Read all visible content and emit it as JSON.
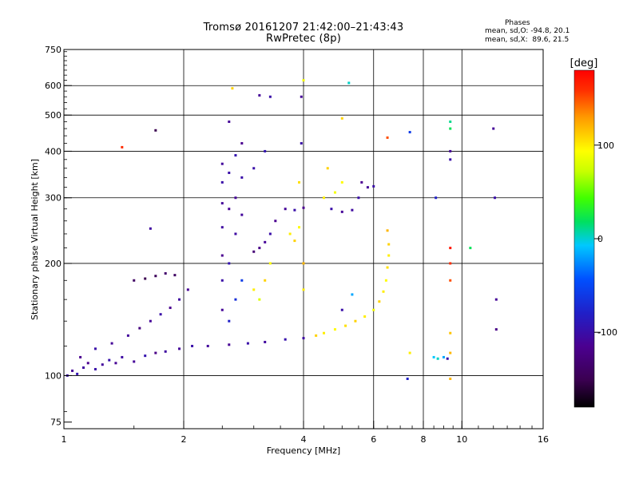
{
  "header": {
    "title": "Tromsø 20161207 21:42:00–21:43:43",
    "subtitle": "RwPretec (8p)"
  },
  "stats": {
    "heading": "Phases",
    "line_o": "mean, sd,O: -94.8, 20.1",
    "line_x": "mean, sd,X:  89.6, 21.5"
  },
  "colorbar": {
    "label": "[deg]",
    "ticks": [
      {
        "value": 100,
        "label": "100"
      },
      {
        "value": 0,
        "label": "0"
      },
      {
        "value": -100,
        "label": "-100"
      }
    ],
    "range": [
      -180,
      180
    ],
    "colormap": "rainbow (black → purple → blue → cyan → green → yellow → orange → red)"
  },
  "chart_data": {
    "type": "scatter",
    "xlabel": "Frequency [MHz]",
    "ylabel": "Stationary phase Virtual Height [km]",
    "x_scale": "log",
    "y_scale": "log",
    "xlim": [
      1,
      16
    ],
    "ylim": [
      72,
      750
    ],
    "x_ticks": [
      {
        "value": 1,
        "label": "1"
      },
      {
        "value": 2,
        "label": "2"
      },
      {
        "value": 4,
        "label": "4"
      },
      {
        "value": 6,
        "label": "6"
      },
      {
        "value": 8,
        "label": "8"
      },
      {
        "value": 10,
        "label": "10"
      },
      {
        "value": 16,
        "label": "16"
      }
    ],
    "y_ticks": [
      {
        "value": 75,
        "label": "75"
      },
      {
        "value": 100,
        "label": "100"
      },
      {
        "value": 200,
        "label": "200"
      },
      {
        "value": 300,
        "label": "300"
      },
      {
        "value": 400,
        "label": "400"
      },
      {
        "value": 500,
        "label": "500"
      },
      {
        "value": 600,
        "label": "600"
      },
      {
        "value": 750,
        "label": "750"
      }
    ],
    "x_gridlines": [
      2,
      4,
      6,
      8,
      10
    ],
    "y_gridlines": [
      100,
      200,
      300,
      400,
      500,
      600
    ],
    "grid": true,
    "points": [
      {
        "x": 1.02,
        "y": 100,
        "phase": -100
      },
      {
        "x": 1.05,
        "y": 103,
        "phase": -110
      },
      {
        "x": 1.08,
        "y": 101,
        "phase": -95
      },
      {
        "x": 1.12,
        "y": 105,
        "phase": -105
      },
      {
        "x": 1.15,
        "y": 108,
        "phase": -115
      },
      {
        "x": 1.2,
        "y": 104,
        "phase": -100
      },
      {
        "x": 1.25,
        "y": 107,
        "phase": -108
      },
      {
        "x": 1.3,
        "y": 110,
        "phase": -98
      },
      {
        "x": 1.35,
        "y": 108,
        "phase": -112
      },
      {
        "x": 1.4,
        "y": 112,
        "phase": -104
      },
      {
        "x": 1.5,
        "y": 109,
        "phase": -110
      },
      {
        "x": 1.6,
        "y": 113,
        "phase": -96
      },
      {
        "x": 1.7,
        "y": 115,
        "phase": -120
      },
      {
        "x": 1.8,
        "y": 116,
        "phase": -105
      },
      {
        "x": 1.95,
        "y": 118,
        "phase": -110
      },
      {
        "x": 2.1,
        "y": 120,
        "phase": -100
      },
      {
        "x": 2.3,
        "y": 120,
        "phase": -108
      },
      {
        "x": 2.6,
        "y": 121,
        "phase": -112
      },
      {
        "x": 2.9,
        "y": 122,
        "phase": -100
      },
      {
        "x": 3.2,
        "y": 123,
        "phase": -106
      },
      {
        "x": 3.6,
        "y": 125,
        "phase": -98
      },
      {
        "x": 4.0,
        "y": 126,
        "phase": -104
      },
      {
        "x": 1.1,
        "y": 112,
        "phase": -115
      },
      {
        "x": 1.2,
        "y": 118,
        "phase": -100
      },
      {
        "x": 1.32,
        "y": 122,
        "phase": -110
      },
      {
        "x": 1.45,
        "y": 128,
        "phase": -108
      },
      {
        "x": 1.55,
        "y": 134,
        "phase": -125
      },
      {
        "x": 1.65,
        "y": 140,
        "phase": -110
      },
      {
        "x": 1.75,
        "y": 146,
        "phase": -100
      },
      {
        "x": 1.85,
        "y": 152,
        "phase": -115
      },
      {
        "x": 1.95,
        "y": 160,
        "phase": -105
      },
      {
        "x": 2.05,
        "y": 170,
        "phase": -112
      },
      {
        "x": 1.5,
        "y": 180,
        "phase": -140
      },
      {
        "x": 1.6,
        "y": 182,
        "phase": -150
      },
      {
        "x": 1.7,
        "y": 185,
        "phase": -145
      },
      {
        "x": 1.8,
        "y": 188,
        "phase": -135
      },
      {
        "x": 1.9,
        "y": 186,
        "phase": -140
      },
      {
        "x": 1.65,
        "y": 248,
        "phase": -105
      },
      {
        "x": 1.7,
        "y": 455,
        "phase": -150
      },
      {
        "x": 1.4,
        "y": 410,
        "phase": 160
      },
      {
        "x": 2.5,
        "y": 150,
        "phase": -110
      },
      {
        "x": 2.5,
        "y": 180,
        "phase": -100
      },
      {
        "x": 2.5,
        "y": 210,
        "phase": -115
      },
      {
        "x": 2.5,
        "y": 250,
        "phase": -105
      },
      {
        "x": 2.5,
        "y": 290,
        "phase": -110
      },
      {
        "x": 2.5,
        "y": 330,
        "phase": -100
      },
      {
        "x": 2.5,
        "y": 370,
        "phase": -108
      },
      {
        "x": 2.6,
        "y": 140,
        "phase": -80
      },
      {
        "x": 2.6,
        "y": 200,
        "phase": -95
      },
      {
        "x": 2.6,
        "y": 280,
        "phase": -112
      },
      {
        "x": 2.6,
        "y": 350,
        "phase": -100
      },
      {
        "x": 2.7,
        "y": 160,
        "phase": -70
      },
      {
        "x": 2.7,
        "y": 240,
        "phase": -104
      },
      {
        "x": 2.7,
        "y": 300,
        "phase": -110
      },
      {
        "x": 2.7,
        "y": 390,
        "phase": -96
      },
      {
        "x": 2.8,
        "y": 180,
        "phase": -60
      },
      {
        "x": 2.8,
        "y": 270,
        "phase": -108
      },
      {
        "x": 2.8,
        "y": 340,
        "phase": -100
      },
      {
        "x": 2.8,
        "y": 420,
        "phase": -115
      },
      {
        "x": 2.6,
        "y": 480,
        "phase": -110
      },
      {
        "x": 2.65,
        "y": 590,
        "phase": 110
      },
      {
        "x": 3.0,
        "y": 215,
        "phase": -130
      },
      {
        "x": 3.1,
        "y": 220,
        "phase": -120
      },
      {
        "x": 3.2,
        "y": 228,
        "phase": -110
      },
      {
        "x": 3.3,
        "y": 240,
        "phase": -100
      },
      {
        "x": 3.4,
        "y": 260,
        "phase": -115
      },
      {
        "x": 3.0,
        "y": 360,
        "phase": -100
      },
      {
        "x": 3.2,
        "y": 400,
        "phase": -95
      },
      {
        "x": 3.0,
        "y": 170,
        "phase": 100
      },
      {
        "x": 3.1,
        "y": 160,
        "phase": 80
      },
      {
        "x": 3.2,
        "y": 180,
        "phase": 110
      },
      {
        "x": 3.3,
        "y": 200,
        "phase": 95
      },
      {
        "x": 3.1,
        "y": 565,
        "phase": -110
      },
      {
        "x": 3.3,
        "y": 560,
        "phase": -100
      },
      {
        "x": 3.6,
        "y": 280,
        "phase": -110
      },
      {
        "x": 3.8,
        "y": 278,
        "phase": -100
      },
      {
        "x": 4.0,
        "y": 282,
        "phase": -115
      },
      {
        "x": 3.7,
        "y": 240,
        "phase": 100
      },
      {
        "x": 3.8,
        "y": 230,
        "phase": 110
      },
      {
        "x": 3.9,
        "y": 250,
        "phase": 95
      },
      {
        "x": 3.9,
        "y": 330,
        "phase": 105
      },
      {
        "x": 4.0,
        "y": 200,
        "phase": 120
      },
      {
        "x": 4.0,
        "y": 170,
        "phase": 100
      },
      {
        "x": 3.95,
        "y": 420,
        "phase": -100
      },
      {
        "x": 3.95,
        "y": 560,
        "phase": -110
      },
      {
        "x": 4.0,
        "y": 620,
        "phase": 90
      },
      {
        "x": 4.3,
        "y": 128,
        "phase": 110
      },
      {
        "x": 4.5,
        "y": 130,
        "phase": 100
      },
      {
        "x": 4.8,
        "y": 133,
        "phase": 95
      },
      {
        "x": 5.1,
        "y": 136,
        "phase": 105
      },
      {
        "x": 5.4,
        "y": 140,
        "phase": 110
      },
      {
        "x": 5.7,
        "y": 144,
        "phase": 100
      },
      {
        "x": 6.0,
        "y": 150,
        "phase": 90
      },
      {
        "x": 6.2,
        "y": 158,
        "phase": 110
      },
      {
        "x": 6.35,
        "y": 168,
        "phase": 100
      },
      {
        "x": 6.45,
        "y": 180,
        "phase": 95
      },
      {
        "x": 6.5,
        "y": 195,
        "phase": 105
      },
      {
        "x": 6.55,
        "y": 210,
        "phase": 100
      },
      {
        "x": 6.55,
        "y": 225,
        "phase": 110
      },
      {
        "x": 6.5,
        "y": 245,
        "phase": 120
      },
      {
        "x": 5.0,
        "y": 150,
        "phase": -100
      },
      {
        "x": 5.3,
        "y": 165,
        "phase": -20
      },
      {
        "x": 4.5,
        "y": 300,
        "phase": 100
      },
      {
        "x": 4.8,
        "y": 310,
        "phase": 90
      },
      {
        "x": 4.6,
        "y": 360,
        "phase": 110
      },
      {
        "x": 5.0,
        "y": 330,
        "phase": 95
      },
      {
        "x": 4.7,
        "y": 280,
        "phase": -100
      },
      {
        "x": 5.0,
        "y": 275,
        "phase": -110
      },
      {
        "x": 5.3,
        "y": 278,
        "phase": -105
      },
      {
        "x": 5.5,
        "y": 300,
        "phase": -100
      },
      {
        "x": 5.6,
        "y": 330,
        "phase": -115
      },
      {
        "x": 5.8,
        "y": 320,
        "phase": -110
      },
      {
        "x": 6.0,
        "y": 322,
        "phase": -100
      },
      {
        "x": 5.2,
        "y": 610,
        "phase": 0
      },
      {
        "x": 5.0,
        "y": 490,
        "phase": 110
      },
      {
        "x": 6.5,
        "y": 435,
        "phase": 150
      },
      {
        "x": 7.4,
        "y": 450,
        "phase": -60
      },
      {
        "x": 7.3,
        "y": 98,
        "phase": -80
      },
      {
        "x": 7.4,
        "y": 115,
        "phase": 100
      },
      {
        "x": 8.5,
        "y": 112,
        "phase": -10
      },
      {
        "x": 8.7,
        "y": 111,
        "phase": 0
      },
      {
        "x": 9.0,
        "y": 112,
        "phase": -20
      },
      {
        "x": 9.2,
        "y": 111,
        "phase": -100
      },
      {
        "x": 9.35,
        "y": 98,
        "phase": 120
      },
      {
        "x": 9.35,
        "y": 115,
        "phase": 120
      },
      {
        "x": 9.35,
        "y": 130,
        "phase": 115
      },
      {
        "x": 9.35,
        "y": 180,
        "phase": 150
      },
      {
        "x": 9.35,
        "y": 200,
        "phase": 160
      },
      {
        "x": 9.35,
        "y": 220,
        "phase": 170
      },
      {
        "x": 9.35,
        "y": 380,
        "phase": -100
      },
      {
        "x": 9.35,
        "y": 400,
        "phase": -110
      },
      {
        "x": 9.35,
        "y": 460,
        "phase": 20
      },
      {
        "x": 9.35,
        "y": 480,
        "phase": 10
      },
      {
        "x": 8.6,
        "y": 300,
        "phase": -80
      },
      {
        "x": 10.5,
        "y": 220,
        "phase": 20
      },
      {
        "x": 12.0,
        "y": 460,
        "phase": -110
      },
      {
        "x": 12.1,
        "y": 300,
        "phase": -100
      },
      {
        "x": 12.2,
        "y": 160,
        "phase": -110
      },
      {
        "x": 12.2,
        "y": 133,
        "phase": -120
      }
    ]
  }
}
